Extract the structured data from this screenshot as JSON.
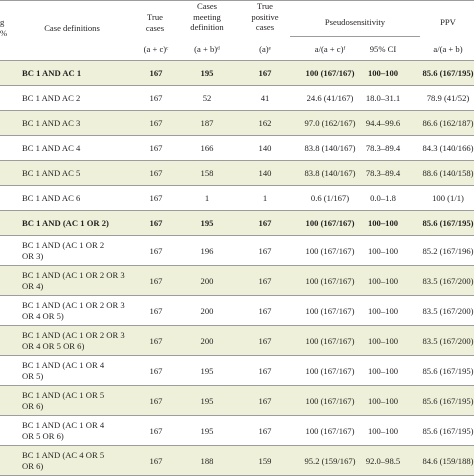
{
  "header": {
    "partial_col": [
      "g",
      "%"
    ],
    "case_definitions": "Case definitions",
    "true_cases": [
      "True",
      "cases"
    ],
    "cases_meeting": [
      "Cases",
      "meeting",
      "definition"
    ],
    "true_positive": [
      "True",
      "positive",
      "cases"
    ],
    "pseudosensitivity": "Pseudosensitivity",
    "ppv": "PPV",
    "sub_true_cases": "(a + c)ᶜ",
    "sub_cases_meeting": "(a + b)ᵈ",
    "sub_true_positive": "(a)ᵉ",
    "sub_ps_value": "a/(a + c)ᶠ",
    "sub_ci": "95% CI",
    "sub_ppv": "a/(a + b)"
  },
  "rows": [
    {
      "def": [
        "BC 1 AND AC 1"
      ],
      "tc": "167",
      "cm": "195",
      "tp": "167",
      "ps": "100 (167/167)",
      "ci": "100–100",
      "ppv": "85.6 (167/195)",
      "bold": true,
      "shaded": true
    },
    {
      "def": [
        "BC 1 AND AC 2"
      ],
      "tc": "167",
      "cm": "52",
      "tp": "41",
      "ps": "24.6 (41/167)",
      "ci": "18.0–31.1",
      "ppv": "78.9 (41/52)",
      "bold": false,
      "shaded": false
    },
    {
      "def": [
        "BC 1 AND AC 3"
      ],
      "tc": "167",
      "cm": "187",
      "tp": "162",
      "ps": "97.0 (162/167)",
      "ci": "94.4–99.6",
      "ppv": "86.6 (162/187)",
      "bold": false,
      "shaded": true
    },
    {
      "def": [
        "BC 1 AND AC 4"
      ],
      "tc": "167",
      "cm": "166",
      "tp": "140",
      "ps": "83.8 (140/167)",
      "ci": "78.3–89.4",
      "ppv": "84.3 (140/166)",
      "bold": false,
      "shaded": false
    },
    {
      "def": [
        "BC 1 AND AC 5"
      ],
      "tc": "167",
      "cm": "158",
      "tp": "140",
      "ps": "83.8 (140/167)",
      "ci": "78.3–89.4",
      "ppv": "88.6 (140/158)",
      "bold": false,
      "shaded": true
    },
    {
      "def": [
        "BC 1 AND AC 6"
      ],
      "tc": "167",
      "cm": "1",
      "tp": "1",
      "ps": "0.6 (1/167)",
      "ci": "0.0–1.8",
      "ppv": "100 (1/1)",
      "bold": false,
      "shaded": false
    },
    {
      "def": [
        "BC 1 AND (AC 1 OR 2)"
      ],
      "tc": "167",
      "cm": "195",
      "tp": "167",
      "ps": "100 (167/167)",
      "ci": "100–100",
      "ppv": "85.6 (167/195)",
      "bold": true,
      "shaded": true
    },
    {
      "def": [
        "BC 1 AND (AC 1 OR 2",
        "OR 3)"
      ],
      "tc": "167",
      "cm": "196",
      "tp": "167",
      "ps": "100 (167/167)",
      "ci": "100–100",
      "ppv": "85.2 (167/196)",
      "bold": false,
      "shaded": false
    },
    {
      "def": [
        "BC 1 AND (AC 1 OR 2 OR 3",
        "OR 4)"
      ],
      "tc": "167",
      "cm": "200",
      "tp": "167",
      "ps": "100 (167/167)",
      "ci": "100–100",
      "ppv": "83.5 (167/200)",
      "bold": false,
      "shaded": true
    },
    {
      "def": [
        "BC 1 AND (AC 1 OR 2 OR 3",
        "OR 4 OR 5)"
      ],
      "tc": "167",
      "cm": "200",
      "tp": "167",
      "ps": "100 (167/167)",
      "ci": "100–100",
      "ppv": "83.5 (167/200)",
      "bold": false,
      "shaded": false
    },
    {
      "def": [
        "BC 1 AND (AC 1 OR 2 OR 3",
        "OR 4 OR 5 OR 6)"
      ],
      "tc": "167",
      "cm": "200",
      "tp": "167",
      "ps": "100 (167/167)",
      "ci": "100–100",
      "ppv": "83.5 (167/200)",
      "bold": false,
      "shaded": true
    },
    {
      "def": [
        "BC 1 AND (AC 1 OR 4",
        "OR 5)"
      ],
      "tc": "167",
      "cm": "195",
      "tp": "167",
      "ps": "100 (167/167)",
      "ci": "100–100",
      "ppv": "85.6 (167/195)",
      "bold": false,
      "shaded": false
    },
    {
      "def": [
        "BC 1 AND (AC 1 OR 5",
        "OR 6)"
      ],
      "tc": "167",
      "cm": "195",
      "tp": "167",
      "ps": "100 (167/167)",
      "ci": "100–100",
      "ppv": "85.6 (167/195)",
      "bold": false,
      "shaded": true
    },
    {
      "def": [
        "BC 1 AND (AC 1 OR 4",
        "OR 5 OR 6)"
      ],
      "tc": "167",
      "cm": "195",
      "tp": "167",
      "ps": "100 (167/167)",
      "ci": "100–100",
      "ppv": "85.6 (167/195)",
      "bold": false,
      "shaded": false
    },
    {
      "def": [
        "BC 1 AND (AC 4 OR 5",
        "OR 6)"
      ],
      "tc": "167",
      "cm": "188",
      "tp": "159",
      "ps": "95.2 (159/167)",
      "ci": "92.0–98.5",
      "ppv": "84.6 (159/188)",
      "bold": false,
      "shaded": true
    }
  ]
}
